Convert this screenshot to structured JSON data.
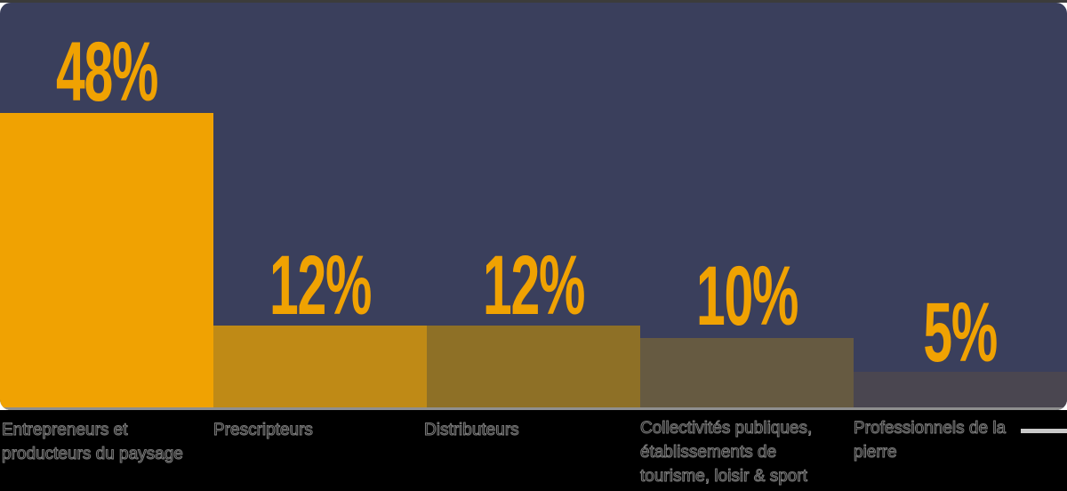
{
  "chart_data": {
    "type": "bar",
    "title": "",
    "categories": [
      "Entrepreneurs et producteurs du paysage",
      "Prescripteurs",
      "Distributeurs",
      "Collectivités publiques, établissements de tourisme, loisir & sport",
      "Professionnels de la pierre"
    ],
    "values": [
      48,
      12,
      12,
      10,
      5
    ],
    "value_labels": [
      "48%",
      "12%",
      "12%",
      "10%",
      "5%"
    ],
    "unit": "percent",
    "legend": "none",
    "grid": false,
    "bar_colors": [
      "#f0a202",
      "#bf8a16",
      "#8e7026",
      "#665a41",
      "#4a4650"
    ],
    "value_label_color": "#f0a202",
    "background_color": "#3a3f5c",
    "baseline_color": "#8f8f8f",
    "category_lines": [
      [
        "Entrepreneurs et",
        "producteurs du paysage"
      ],
      [
        "Prescripteurs"
      ],
      [
        "Distributeurs"
      ],
      [
        "Collectivités publiques,",
        "établissements de",
        "tourisme, loisir & sport"
      ],
      [
        "Professionnels de la",
        "pierre"
      ]
    ]
  }
}
